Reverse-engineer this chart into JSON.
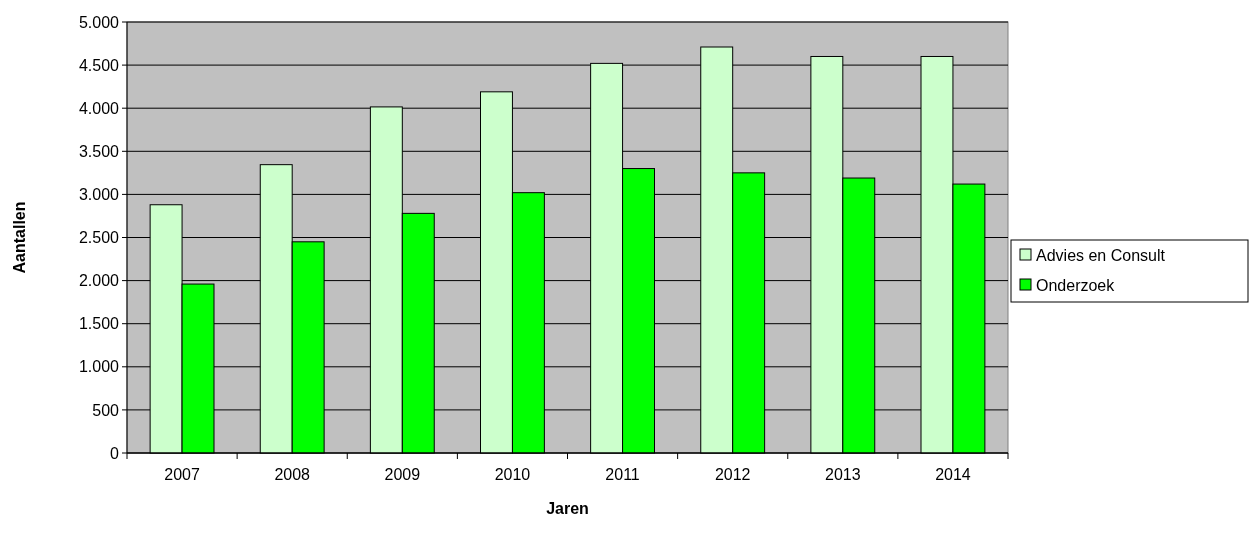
{
  "chart_data": {
    "type": "bar",
    "xlabel": "Jaren",
    "ylabel": "Aantallen",
    "categories": [
      "2007",
      "2008",
      "2009",
      "2010",
      "2011",
      "2012",
      "2013",
      "2014"
    ],
    "series": [
      {
        "name": "Advies en Consult",
        "color": "#ccffcc",
        "values": [
          2880,
          3345,
          4015,
          4190,
          4520,
          4710,
          4600,
          4600
        ]
      },
      {
        "name": "Onderzoek",
        "color": "#00ff00",
        "values": [
          1960,
          2450,
          2780,
          3020,
          3300,
          3250,
          3190,
          3120
        ]
      }
    ],
    "ylim": [
      0,
      5000
    ],
    "yticks": [
      {
        "value": 0,
        "label": "0"
      },
      {
        "value": 500,
        "label": "500"
      },
      {
        "value": 1000,
        "label": "1.000"
      },
      {
        "value": 1500,
        "label": "1.500"
      },
      {
        "value": 2000,
        "label": "2.000"
      },
      {
        "value": 2500,
        "label": "2.500"
      },
      {
        "value": 3000,
        "label": "3.000"
      },
      {
        "value": 3500,
        "label": "3.500"
      },
      {
        "value": 4000,
        "label": "4.000"
      },
      {
        "value": 4500,
        "label": "4.500"
      },
      {
        "value": 5000,
        "label": "5.000"
      }
    ],
    "grid": "y",
    "legend": "right"
  }
}
